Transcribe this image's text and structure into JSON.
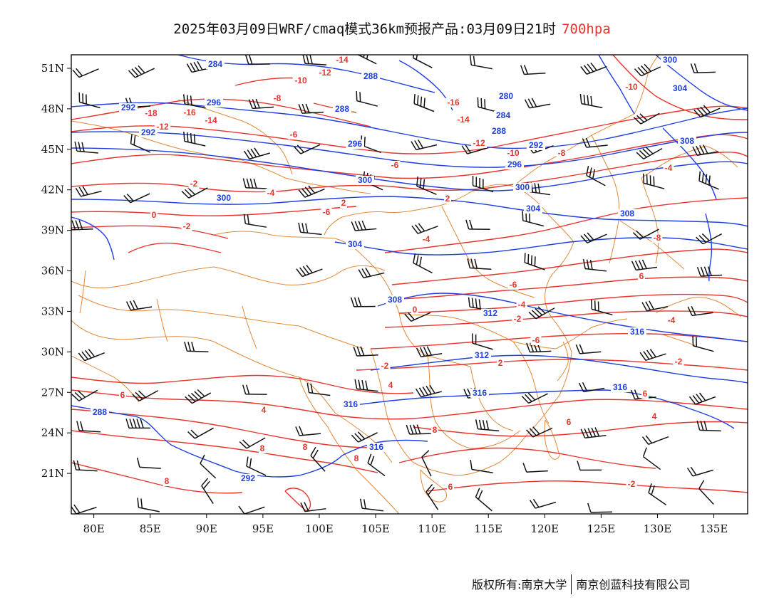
{
  "title": {
    "main": "2025年03月09日WRF/cmaq模式36km预报产品:03月09日21时",
    "level": "700hpa"
  },
  "footer": {
    "copyright": "版权所有:南京大学",
    "company": "南京创蓝科技有限公司"
  },
  "colors": {
    "temperature": "#e8352e",
    "geopotential": "#1f3fe0",
    "border": "#e0893a",
    "wind": "#111111",
    "level_text": "#e8352e"
  },
  "map": {
    "lon_range": [
      78,
      138
    ],
    "lat_range": [
      18,
      52
    ],
    "lat_ticks": [
      "51N",
      "48N",
      "45N",
      "42N",
      "39N",
      "36N",
      "33N",
      "30N",
      "27N",
      "24N",
      "21N"
    ],
    "lon_ticks": [
      "80E",
      "85E",
      "90E",
      "95E",
      "100E",
      "105E",
      "110E",
      "115E",
      "120E",
      "125E",
      "130E",
      "135E"
    ]
  },
  "contours": {
    "temperature_labels": [
      "-14",
      "-12",
      "-10",
      "-18",
      "-16",
      "-12",
      "-14",
      "-8",
      "-6",
      "-16",
      "-14",
      "-12",
      "-10",
      "-8",
      "-10",
      "-6",
      "-2",
      "-4",
      "-6",
      "0",
      "-2",
      "2",
      "-4",
      "-8",
      "-6",
      "-4",
      "-2",
      "-4",
      "-6",
      "0",
      "-2",
      "-2",
      "2",
      "4",
      "6",
      "4",
      "6",
      "8",
      "8",
      "6",
      "8",
      "8",
      "6",
      "8",
      "-2",
      "2",
      "4",
      "-4",
      "6"
    ],
    "geopotential_labels": [
      "284",
      "288",
      "292",
      "296",
      "288",
      "292",
      "280",
      "284",
      "288",
      "292",
      "296",
      "296",
      "300",
      "300",
      "304",
      "300",
      "304",
      "308",
      "308",
      "312",
      "312",
      "316",
      "316",
      "316",
      "316",
      "316",
      "288",
      "292",
      "300",
      "304",
      "308"
    ]
  }
}
